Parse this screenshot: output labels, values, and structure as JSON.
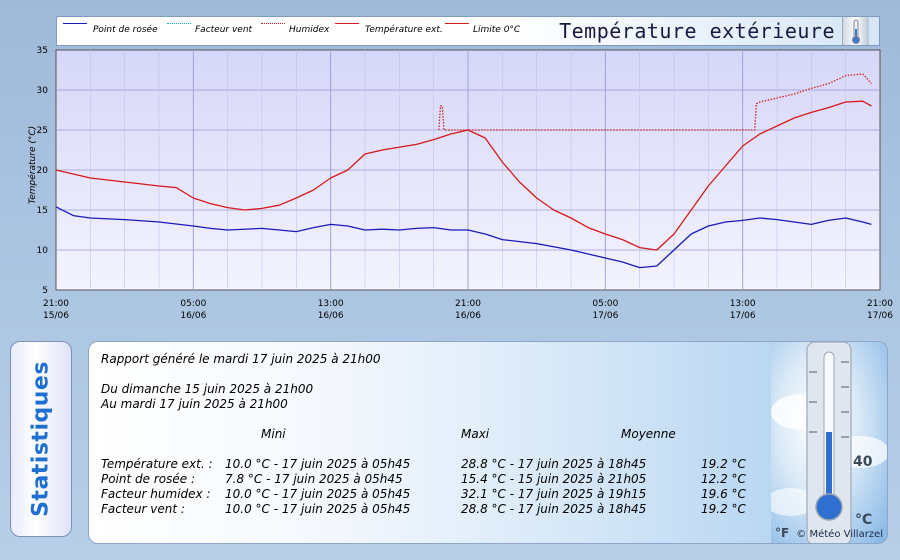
{
  "chart": {
    "title": "Température extérieure",
    "legend": [
      {
        "label": "Point de rosée",
        "color": "#1a1ab8",
        "style": "solid"
      },
      {
        "label": "Facteur vent",
        "color": "#14a8c8",
        "style": "dotted"
      },
      {
        "label": "Humidex",
        "color": "#d02020",
        "style": "dotted"
      },
      {
        "label": "Température ext.",
        "color": "#d81818",
        "style": "solid"
      },
      {
        "label": "Limite 0°C",
        "color": "#d81818",
        "style": "solid"
      }
    ],
    "ylabel": "Température (°C)",
    "x_ticks": [
      {
        "time": "21:00",
        "date": "15/06"
      },
      {
        "time": "05:00",
        "date": "16/06"
      },
      {
        "time": "13:00",
        "date": "16/06"
      },
      {
        "time": "21:00",
        "date": "16/06"
      },
      {
        "time": "05:00",
        "date": "17/06"
      },
      {
        "time": "13:00",
        "date": "17/06"
      },
      {
        "time": "21:00",
        "date": "17/06"
      }
    ]
  },
  "chart_data": {
    "type": "line",
    "ylabel": "Température (°C)",
    "ylim": [
      5,
      35
    ],
    "y_ticks": [
      5,
      10,
      15,
      20,
      25,
      30,
      35
    ],
    "x_unit": "hours since 15/06 21:00",
    "xlim": [
      0,
      48
    ],
    "grid": true,
    "legend_placement": "top",
    "series": [
      {
        "name": "Température ext.",
        "color": "#d81818",
        "style": "solid",
        "x": [
          0,
          2,
          4,
          6,
          7,
          8,
          9,
          10,
          11,
          12,
          13,
          14,
          15,
          16,
          17,
          18,
          19,
          21,
          22,
          23,
          24,
          25,
          26,
          27,
          28,
          29,
          30,
          31,
          32,
          33,
          34,
          35,
          36,
          37,
          38,
          39,
          40,
          41,
          42,
          43,
          44,
          45,
          46,
          47,
          47.5
        ],
        "y": [
          20,
          19,
          18.5,
          18,
          17.8,
          16.5,
          15.8,
          15.3,
          15,
          15.2,
          15.6,
          16.5,
          17.5,
          19,
          20,
          22,
          22.5,
          23.2,
          23.8,
          24.5,
          25,
          24,
          21,
          18.5,
          16.5,
          15,
          14,
          12.8,
          12,
          11.3,
          10.3,
          10,
          12,
          15,
          18,
          20.5,
          23,
          24.5,
          25.5,
          26.5,
          27.2,
          27.8,
          28.5,
          28.6,
          28
        ]
      },
      {
        "name": "Point de rosée",
        "color": "#1a1ab8",
        "style": "solid",
        "x": [
          0,
          1,
          2,
          4,
          6,
          8,
          9,
          10,
          12,
          13,
          14,
          15,
          16,
          17,
          18,
          19,
          20,
          21,
          22,
          23,
          24,
          25,
          26,
          28,
          30,
          31,
          32,
          33,
          34,
          35,
          36,
          37,
          38,
          39,
          40,
          41,
          42,
          43,
          44,
          45,
          46,
          47,
          47.5
        ],
        "y": [
          15.4,
          14.3,
          14,
          13.8,
          13.5,
          13,
          12.7,
          12.5,
          12.7,
          12.5,
          12.3,
          12.8,
          13.2,
          13,
          12.5,
          12.6,
          12.5,
          12.7,
          12.8,
          12.5,
          12.5,
          12,
          11.3,
          10.8,
          10,
          9.5,
          9,
          8.5,
          7.8,
          8,
          10,
          12,
          13,
          13.5,
          13.7,
          14,
          13.8,
          13.5,
          13.2,
          13.7,
          14,
          13.5,
          13.2
        ]
      },
      {
        "name": "Humidex",
        "color": "#d02020",
        "style": "dotted",
        "x": [
          22.3,
          22.4,
          22.5,
          22.6,
          22.7,
          40.7,
          40.8,
          41,
          42,
          43,
          44,
          45,
          46,
          47,
          47.5
        ],
        "y": [
          25,
          28,
          28,
          25,
          25,
          25,
          28.3,
          28.5,
          29,
          29.5,
          30.2,
          30.8,
          31.8,
          32,
          30.8
        ]
      }
    ]
  },
  "stats": {
    "tab_label": "Statistiques",
    "generated": "Rapport généré le mardi 17 juin 2025 à  21h00",
    "from": "Du dimanche 15 juin 2025 à  21h00",
    "to": "Au mardi 17 juin 2025 à  21h00",
    "headers": {
      "mini": "Mini",
      "maxi": "Maxi",
      "moyenne": "Moyenne"
    },
    "rows": [
      {
        "label": "Température ext. :",
        "mini": "10.0 °C - 17 juin 2025 à  05h45",
        "maxi": "28.8 °C - 17 juin 2025 à  18h45",
        "moy": "19.2 °C"
      },
      {
        "label": "Point de rosée :",
        "mini": "7.8 °C - 17 juin 2025 à  05h45",
        "maxi": "15.4 °C - 15 juin 2025 à  21h05",
        "moy": "12.2 °C"
      },
      {
        "label": "Facteur humidex :",
        "mini": "10.0 °C - 17 juin 2025 à  05h45",
        "maxi": "32.1 °C - 17 juin 2025 à  19h15",
        "moy": "19.6 °C"
      },
      {
        "label": "Facteur vent :",
        "mini": "10.0 °C - 17 juin 2025 à  05h45",
        "maxi": "28.8 °C - 17 juin 2025 à  18h45",
        "moy": "19.2 °C"
      }
    ],
    "thermo_labels": {
      "t40": "40",
      "unit_c": "°C",
      "unit_f": "°F"
    },
    "copyright": "© Météo Villarzel"
  }
}
